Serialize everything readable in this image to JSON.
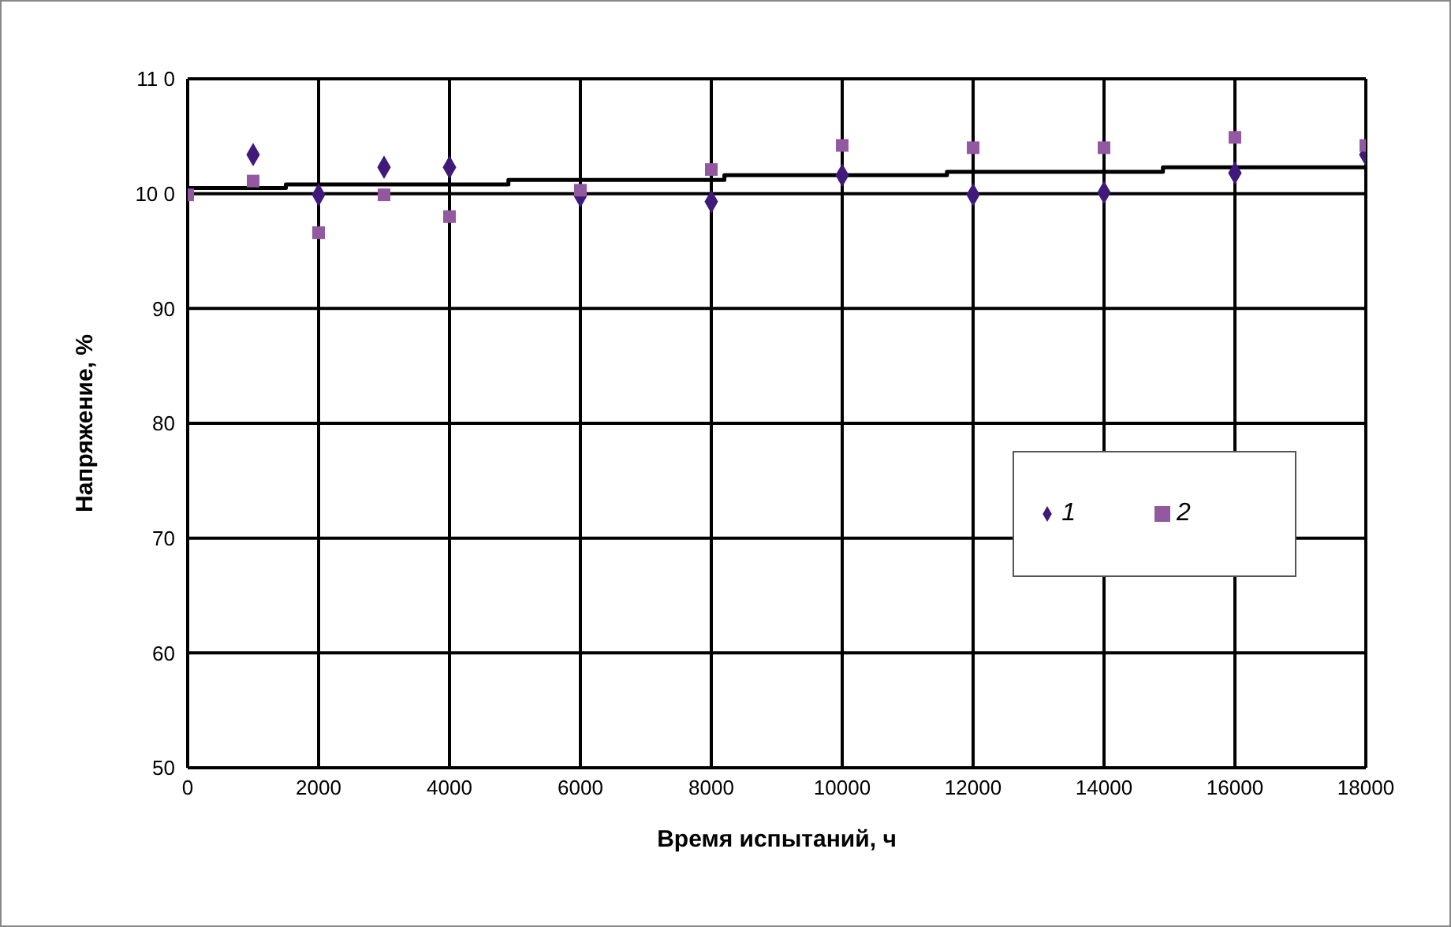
{
  "chart_data": {
    "type": "scatter",
    "xlabel": "Время испытаний, ч",
    "ylabel": "Напряжение, %",
    "xlim": [
      0,
      18000
    ],
    "xticks": [
      0,
      2000,
      4000,
      6000,
      8000,
      10000,
      12000,
      14000,
      16000,
      18000
    ],
    "ylim": [
      50,
      110
    ],
    "yticks": [
      50,
      60,
      70,
      80,
      90,
      {
        "value": 100,
        "label": "10 0"
      },
      {
        "value": 110,
        "label": "11 0"
      }
    ],
    "grid": true,
    "legend": "right",
    "series": [
      {
        "name": "1",
        "marker": "diamond",
        "color": "#3f1a7a",
        "x": [
          1000,
          2000,
          3000,
          4000,
          6000,
          8000,
          10000,
          12000,
          14000,
          16000,
          18000
        ],
        "values": [
          103.4,
          99.9,
          102.3,
          102.3,
          99.8,
          99.3,
          101.6,
          99.9,
          100.1,
          101.8,
          103.4
        ]
      },
      {
        "name": "2",
        "marker": "square",
        "color": "#9359a0",
        "x": [
          0,
          1000,
          2000,
          3000,
          4000,
          6000,
          8000,
          10000,
          12000,
          14000,
          16000,
          18000
        ],
        "values": [
          99.9,
          101.1,
          96.6,
          99.9,
          98,
          100.3,
          102.1,
          104.2,
          104,
          104,
          104.9,
          104.2
        ]
      },
      {
        "type": "step",
        "color": "#000000",
        "x": [
          0,
          1500,
          4900,
          8200,
          11600,
          14900,
          18000
        ],
        "values": [
          100.5,
          100.8,
          101.2,
          101.6,
          101.9,
          102.3,
          102.3
        ]
      }
    ]
  }
}
